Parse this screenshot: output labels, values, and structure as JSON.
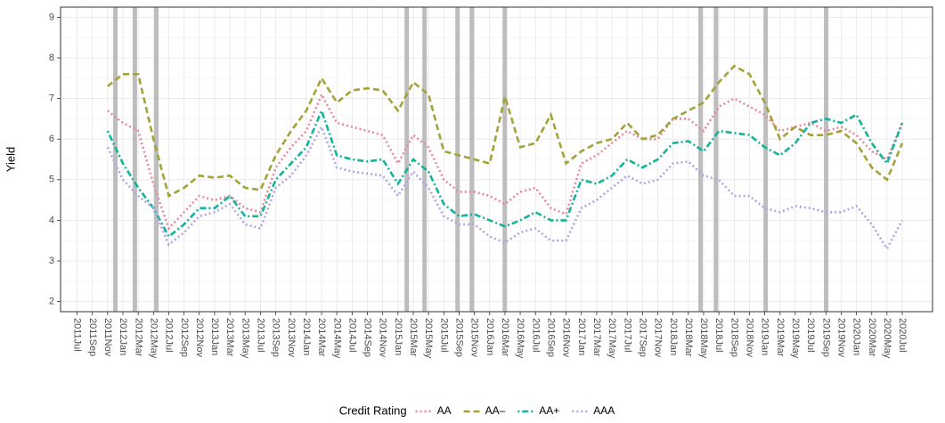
{
  "chart_data": {
    "type": "line",
    "ylabel": "Yield",
    "legend_title": "Credit Rating",
    "legend_position": "bottom",
    "grid": true,
    "xlim": [
      2011.32,
      2020.83
    ],
    "ylim": [
      1.75,
      9.25
    ],
    "yticks": [
      2,
      3,
      4,
      5,
      6,
      7,
      8,
      9
    ],
    "xticks": [
      {
        "value": 2011.5,
        "label": "2011Jul"
      },
      {
        "value": 2011.667,
        "label": "2011Sep"
      },
      {
        "value": 2011.833,
        "label": "2011Nov"
      },
      {
        "value": 2012,
        "label": "2012Jan"
      },
      {
        "value": 2012.167,
        "label": "2012Mar"
      },
      {
        "value": 2012.333,
        "label": "2012May"
      },
      {
        "value": 2012.5,
        "label": "2012Jul"
      },
      {
        "value": 2012.667,
        "label": "2012Sep"
      },
      {
        "value": 2012.833,
        "label": "2012Nov"
      },
      {
        "value": 2013,
        "label": "2013Jan"
      },
      {
        "value": 2013.167,
        "label": "2013Mar"
      },
      {
        "value": 2013.333,
        "label": "2013May"
      },
      {
        "value": 2013.5,
        "label": "2013Jul"
      },
      {
        "value": 2013.667,
        "label": "2013Sep"
      },
      {
        "value": 2013.833,
        "label": "2013Nov"
      },
      {
        "value": 2014,
        "label": "2014Jan"
      },
      {
        "value": 2014.167,
        "label": "2014Mar"
      },
      {
        "value": 2014.333,
        "label": "2014May"
      },
      {
        "value": 2014.5,
        "label": "2014Jul"
      },
      {
        "value": 2014.667,
        "label": "2014Sep"
      },
      {
        "value": 2014.833,
        "label": "2014Nov"
      },
      {
        "value": 2015,
        "label": "2015Jan"
      },
      {
        "value": 2015.167,
        "label": "2015Mar"
      },
      {
        "value": 2015.333,
        "label": "2015May"
      },
      {
        "value": 2015.5,
        "label": "2015Jul"
      },
      {
        "value": 2015.667,
        "label": "2015Sep"
      },
      {
        "value": 2015.833,
        "label": "2015Nov"
      },
      {
        "value": 2016,
        "label": "2016Jan"
      },
      {
        "value": 2016.167,
        "label": "2016Mar"
      },
      {
        "value": 2016.333,
        "label": "2016May"
      },
      {
        "value": 2016.5,
        "label": "2016Jul"
      },
      {
        "value": 2016.667,
        "label": "2016Sep"
      },
      {
        "value": 2016.833,
        "label": "2016Nov"
      },
      {
        "value": 2017,
        "label": "2017Jan"
      },
      {
        "value": 2017.167,
        "label": "2017Mar"
      },
      {
        "value": 2017.333,
        "label": "2017May"
      },
      {
        "value": 2017.5,
        "label": "2017Jul"
      },
      {
        "value": 2017.667,
        "label": "2017Sep"
      },
      {
        "value": 2017.833,
        "label": "2017Nov"
      },
      {
        "value": 2018,
        "label": "2018Jan"
      },
      {
        "value": 2018.167,
        "label": "2018Mar"
      },
      {
        "value": 2018.333,
        "label": "2018May"
      },
      {
        "value": 2018.5,
        "label": "2018Jul"
      },
      {
        "value": 2018.667,
        "label": "2018Sep"
      },
      {
        "value": 2018.833,
        "label": "2018Nov"
      },
      {
        "value": 2019,
        "label": "2019Jan"
      },
      {
        "value": 2019.167,
        "label": "2019Mar"
      },
      {
        "value": 2019.333,
        "label": "2019May"
      },
      {
        "value": 2019.5,
        "label": "2019Jul"
      },
      {
        "value": 2019.667,
        "label": "2019Sep"
      },
      {
        "value": 2019.833,
        "label": "2019Nov"
      },
      {
        "value": 2020,
        "label": "2020Jan"
      },
      {
        "value": 2020.167,
        "label": "2020Mar"
      },
      {
        "value": 2020.333,
        "label": "2020May"
      },
      {
        "value": 2020.5,
        "label": "2020Jul"
      }
    ],
    "events": [
      2011.918,
      2012.13,
      2012.365,
      2015.096,
      2015.29,
      2015.65,
      2015.805,
      2016.165,
      2018.3,
      2018.468,
      2019.01,
      2019.67
    ],
    "event_color": "#bdbdbd",
    "x": [
      2011.833,
      2012,
      2012.167,
      2012.333,
      2012.5,
      2012.667,
      2012.833,
      2013,
      2013.167,
      2013.333,
      2013.5,
      2013.667,
      2013.833,
      2014,
      2014.167,
      2014.333,
      2014.5,
      2014.667,
      2014.833,
      2015,
      2015.167,
      2015.333,
      2015.5,
      2015.667,
      2015.833,
      2016,
      2016.167,
      2016.333,
      2016.5,
      2016.667,
      2016.833,
      2017,
      2017.167,
      2017.333,
      2017.5,
      2017.667,
      2017.833,
      2018,
      2018.167,
      2018.333,
      2018.5,
      2018.667,
      2018.833,
      2019,
      2019.167,
      2019.333,
      2019.5,
      2019.667,
      2019.833,
      2020,
      2020.167,
      2020.333,
      2020.5
    ],
    "series": [
      {
        "name": "AA",
        "color": "#e8899e",
        "dash": "dotted",
        "values": [
          6.7,
          6.4,
          6.2,
          4.9,
          3.8,
          4.2,
          4.6,
          4.5,
          4.6,
          4.3,
          4.2,
          5.3,
          5.8,
          6.2,
          7.1,
          6.4,
          6.3,
          6.2,
          6.1,
          5.4,
          6.1,
          5.8,
          5.0,
          4.7,
          4.7,
          4.6,
          4.4,
          4.7,
          4.8,
          4.3,
          4.15,
          5.4,
          5.6,
          5.9,
          6.2,
          6.0,
          6.0,
          6.5,
          6.5,
          6.2,
          6.8,
          7.0,
          6.8,
          6.6,
          6.2,
          6.3,
          6.4,
          6.2,
          6.3,
          6.1,
          5.7,
          5.5,
          6.4
        ]
      },
      {
        "name": "AA–",
        "color": "#a3a33a",
        "dash": "dashed",
        "values": [
          7.3,
          7.6,
          7.6,
          6.0,
          4.6,
          4.8,
          5.1,
          5.05,
          5.1,
          4.8,
          4.75,
          5.6,
          6.2,
          6.7,
          7.5,
          6.9,
          7.2,
          7.25,
          7.2,
          6.7,
          7.4,
          7.1,
          5.7,
          5.6,
          5.5,
          5.4,
          7.05,
          5.8,
          5.9,
          6.6,
          5.4,
          5.7,
          5.9,
          6.0,
          6.4,
          6.0,
          6.1,
          6.5,
          6.7,
          6.9,
          7.4,
          7.8,
          7.6,
          6.9,
          6.0,
          6.3,
          6.1,
          6.1,
          6.2,
          5.9,
          5.3,
          5.0,
          5.9
        ]
      },
      {
        "name": "AA+",
        "color": "#14b39a",
        "dash": "dotdash",
        "values": [
          6.2,
          5.4,
          4.8,
          4.3,
          3.6,
          3.9,
          4.3,
          4.3,
          4.6,
          4.1,
          4.1,
          5.0,
          5.4,
          5.8,
          6.7,
          5.6,
          5.5,
          5.45,
          5.5,
          4.9,
          5.5,
          5.2,
          4.4,
          4.1,
          4.15,
          4.0,
          3.85,
          4.0,
          4.2,
          4.0,
          4.0,
          5.0,
          4.9,
          5.1,
          5.5,
          5.3,
          5.5,
          5.9,
          5.95,
          5.7,
          6.2,
          6.15,
          6.1,
          5.8,
          5.6,
          5.9,
          6.4,
          6.5,
          6.4,
          6.6,
          5.9,
          5.4,
          6.4
        ]
      },
      {
        "name": "AAA",
        "color": "#b3a3e8",
        "dash": "dotted",
        "values": [
          5.8,
          5.0,
          4.6,
          4.3,
          3.4,
          3.7,
          4.1,
          4.2,
          4.4,
          3.9,
          3.8,
          4.8,
          5.1,
          5.6,
          6.3,
          5.3,
          5.2,
          5.15,
          5.1,
          4.6,
          5.2,
          4.8,
          4.1,
          3.9,
          3.9,
          3.6,
          3.45,
          3.7,
          3.8,
          3.5,
          3.5,
          4.3,
          4.5,
          4.8,
          5.1,
          4.9,
          5.0,
          5.4,
          5.45,
          5.1,
          5.0,
          4.6,
          4.6,
          4.3,
          4.2,
          4.35,
          4.3,
          4.2,
          4.2,
          4.35,
          3.9,
          3.3,
          4.0
        ]
      }
    ]
  }
}
